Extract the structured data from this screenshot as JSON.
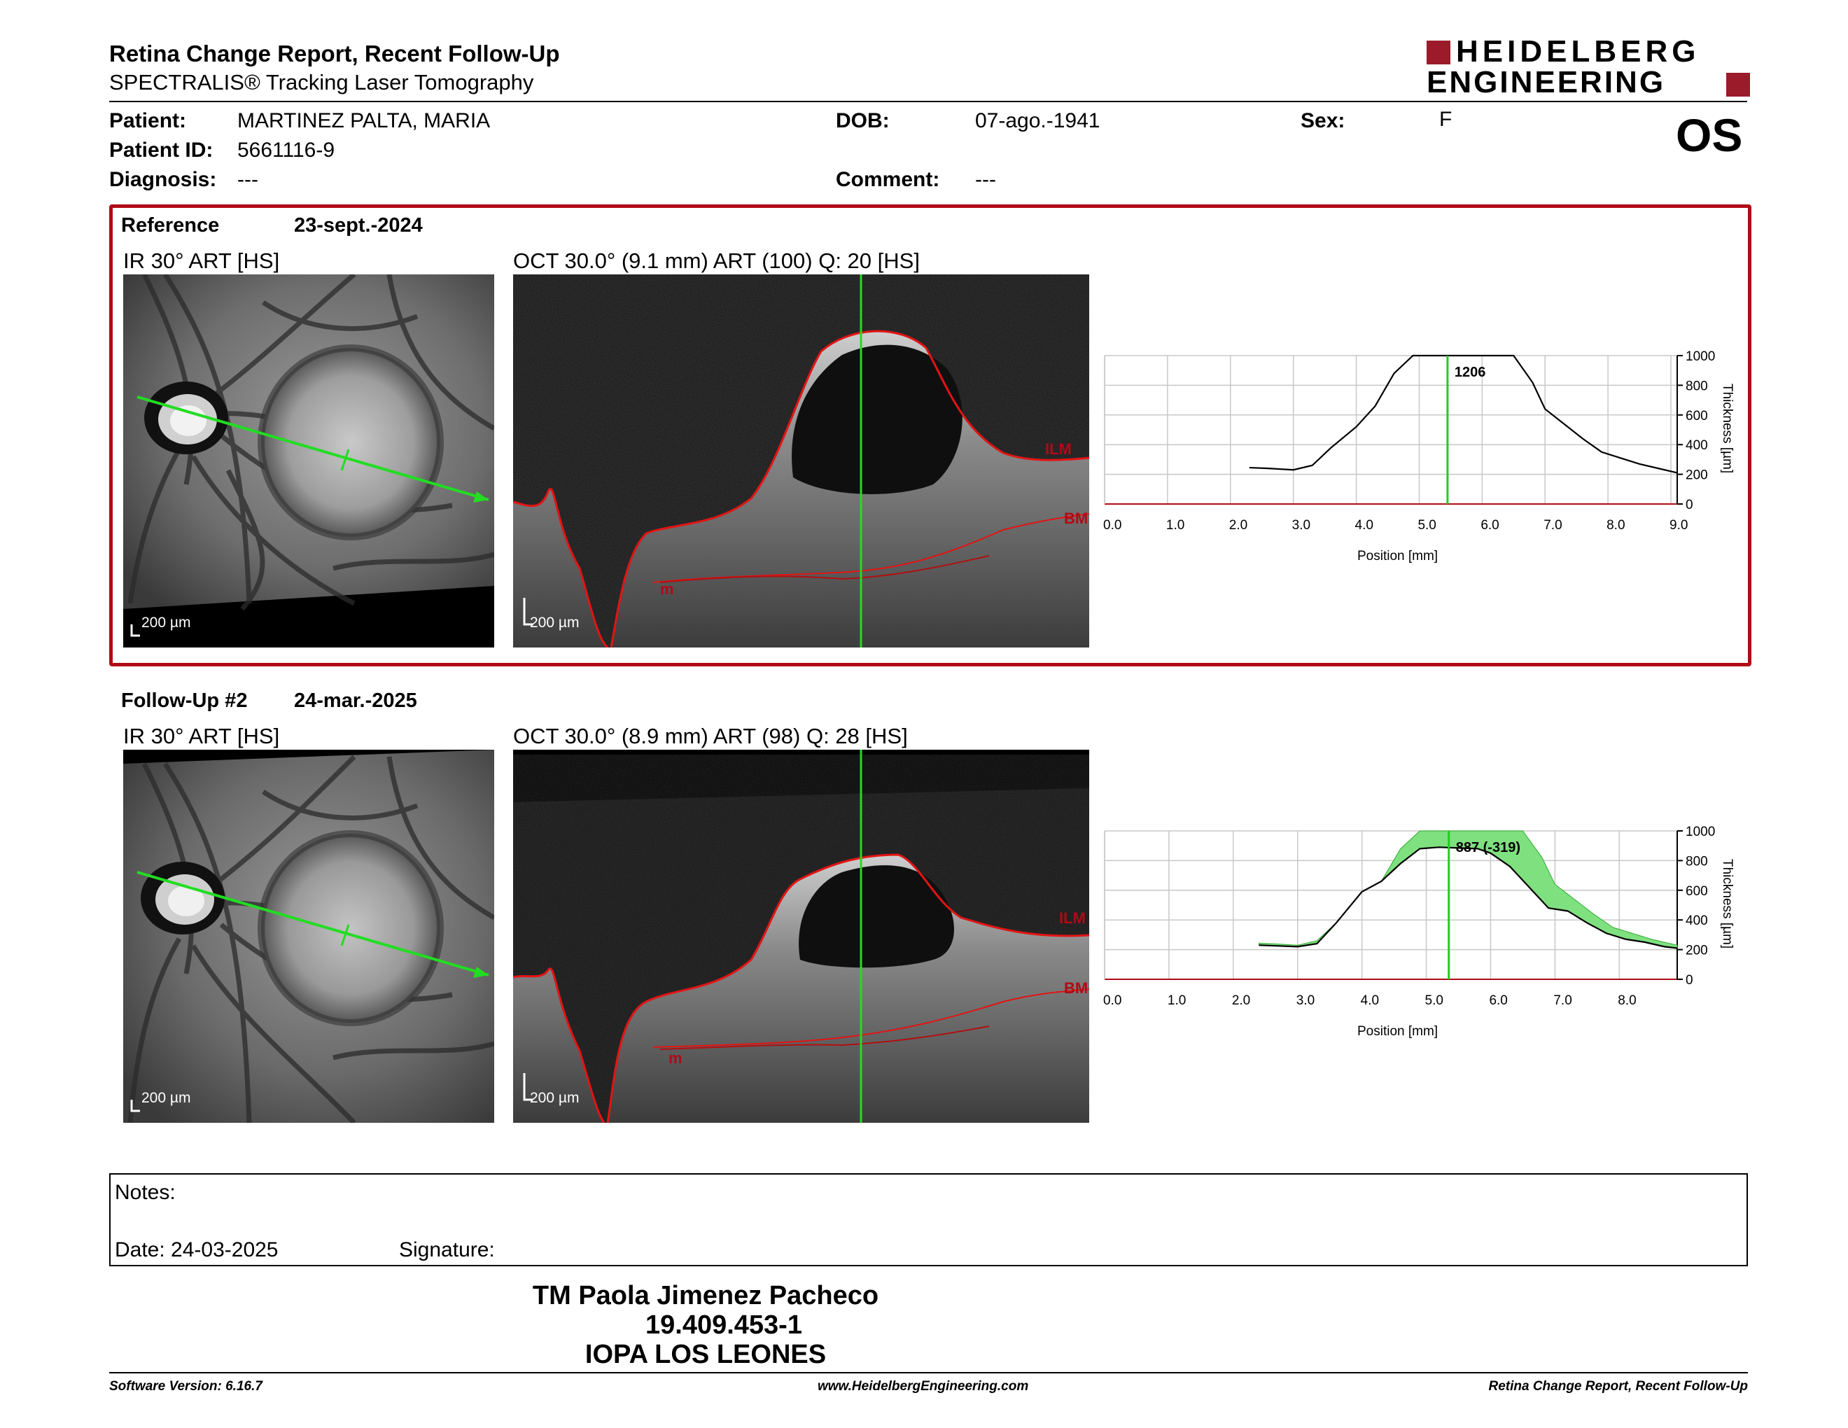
{
  "header": {
    "title": "Retina Change Report, Recent Follow-Up",
    "subtitle": "SPECTRALIS® Tracking Laser Tomography",
    "logo_line1": "HEIDELBERG",
    "logo_line2": "ENGINEERING",
    "eye": "OS"
  },
  "patient": {
    "patient_label": "Patient:",
    "patient_value": "MARTINEZ PALTA, MARIA",
    "id_label": "Patient ID:",
    "id_value": "5661116-9",
    "diagnosis_label": "Diagnosis:",
    "diagnosis_value": "---",
    "dob_label": "DOB:",
    "dob_value": "07-ago.-1941",
    "comment_label": "Comment:",
    "comment_value": "---",
    "sex_label": "Sex:",
    "sex_value": "F"
  },
  "reference": {
    "label": "Reference",
    "date": "23-sept.-2024",
    "ir_title": "IR 30° ART [HS]",
    "oct_title": "OCT 30.0° (9.1 mm) ART (100) Q: 20 [HS]",
    "scale_ir": "200 µm",
    "scale_oct": "200 µm",
    "ilm": "ILM",
    "bm": "BM",
    "m": "m"
  },
  "followup": {
    "label": "Follow-Up #2",
    "date": "24-mar.-2025",
    "ir_title": "IR 30° ART [HS]",
    "oct_title": "OCT 30.0° (8.9 mm) ART (98) Q: 28 [HS]",
    "scale_ir": "200 µm",
    "scale_oct": "200 µm",
    "ilm": "ILM",
    "bm": "BM",
    "m": "m"
  },
  "chart_data": [
    {
      "type": "line",
      "xlabel": "Position [mm]",
      "ylabel": "Thickness [µm]",
      "xlim": [
        0,
        9.1
      ],
      "ylim": [
        0,
        1000
      ],
      "x_ticks": [
        "0.0",
        "1.0",
        "2.0",
        "3.0",
        "4.0",
        "5.0",
        "6.0",
        "7.0",
        "8.0",
        "9.0"
      ],
      "y_ticks": [
        "0",
        "200",
        "400",
        "600",
        "800",
        "1000"
      ],
      "marker_x": 5.45,
      "marker_label": "1206",
      "series": [
        {
          "x": [
            2.3,
            2.6,
            3.0,
            3.3,
            3.6,
            4.0,
            4.3,
            4.6,
            4.9,
            5.1,
            5.3,
            5.5,
            5.8,
            6.0,
            6.2,
            6.5,
            6.8,
            7.0,
            7.3,
            7.6,
            7.9,
            8.2,
            8.5,
            8.8,
            9.1
          ],
          "y": [
            245,
            240,
            230,
            260,
            380,
            520,
            660,
            880,
            1000,
            1000,
            1000,
            1000,
            1000,
            1000,
            1000,
            1000,
            820,
            640,
            540,
            440,
            350,
            310,
            270,
            240,
            210
          ]
        }
      ],
      "grid": true,
      "line_color": "#000000",
      "marker_color": "#00c000"
    },
    {
      "type": "area",
      "xlabel": "Position [mm]",
      "ylabel": "Thickness [µm]",
      "xlim": [
        0,
        8.9
      ],
      "ylim": [
        0,
        1000
      ],
      "x_ticks": [
        "0.0",
        "1.0",
        "2.0",
        "3.0",
        "4.0",
        "5.0",
        "6.0",
        "7.0",
        "8.0"
      ],
      "y_ticks": [
        "0",
        "200",
        "400",
        "600",
        "800",
        "1000"
      ],
      "marker_x": 5.35,
      "marker_label": "887 (-319)",
      "series": [
        {
          "x": [
            2.4,
            2.7,
            3.0,
            3.3,
            3.6,
            4.0,
            4.3,
            4.6,
            4.9,
            5.2,
            5.5,
            5.8,
            6.0,
            6.3,
            6.6,
            6.9,
            7.2,
            7.5,
            7.8,
            8.1,
            8.4,
            8.7,
            8.9
          ],
          "y": [
            230,
            225,
            220,
            240,
            380,
            590,
            660,
            780,
            880,
            890,
            885,
            880,
            850,
            760,
            620,
            480,
            460,
            380,
            310,
            270,
            250,
            220,
            210
          ]
        }
      ],
      "change_fill_color": "#7fe07f",
      "grid": true
    }
  ],
  "notes": {
    "notes_label": "Notes:",
    "date_label": "Date: 24-03-2025",
    "signature_label": "Signature:"
  },
  "signer": {
    "name": "TM Paola Jimenez Pacheco",
    "id": "19.409.453-1",
    "institution": "IOPA LOS LEONES"
  },
  "footer": {
    "software": "Software Version: 6.16.7",
    "website": "www.HeidelbergEngineering.com",
    "report_name": "Retina Change Report, Recent Follow-Up"
  },
  "colors": {
    "brand_red": "#9b1b2a",
    "frame_red": "#b00a16",
    "scan_green": "#22dd22",
    "seg_red": "#e21414"
  }
}
